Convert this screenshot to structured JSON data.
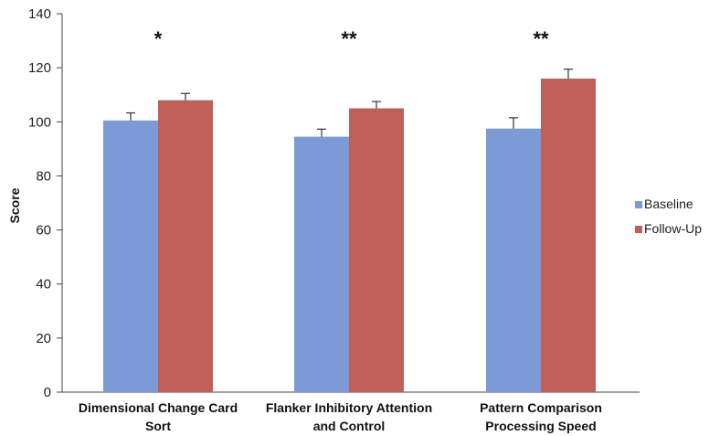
{
  "chart_data": {
    "type": "bar",
    "ylabel": "Score",
    "ylim": [
      0,
      140
    ],
    "yticks": [
      "0",
      "20",
      "40",
      "60",
      "80",
      "100",
      "120",
      "140"
    ],
    "categories": [
      [
        "Dimensional Change Card",
        "Sort"
      ],
      [
        "Flanker Inhibitory Attention",
        "and Control"
      ],
      [
        "Pattern Comparison",
        "Processing Speed"
      ]
    ],
    "series": [
      {
        "name": "Baseline",
        "color": "#7b9ad6",
        "values": [
          100.5,
          94.5,
          97.5
        ],
        "errors": [
          2.8,
          2.8,
          4.0
        ]
      },
      {
        "name": "Follow-Up",
        "color": "#bf5f5a",
        "values": [
          108.0,
          105.0,
          116.0
        ],
        "errors": [
          2.5,
          2.5,
          3.5
        ]
      }
    ],
    "significance": [
      "*",
      "**",
      "**"
    ],
    "legend_position": "right",
    "grid": false
  }
}
